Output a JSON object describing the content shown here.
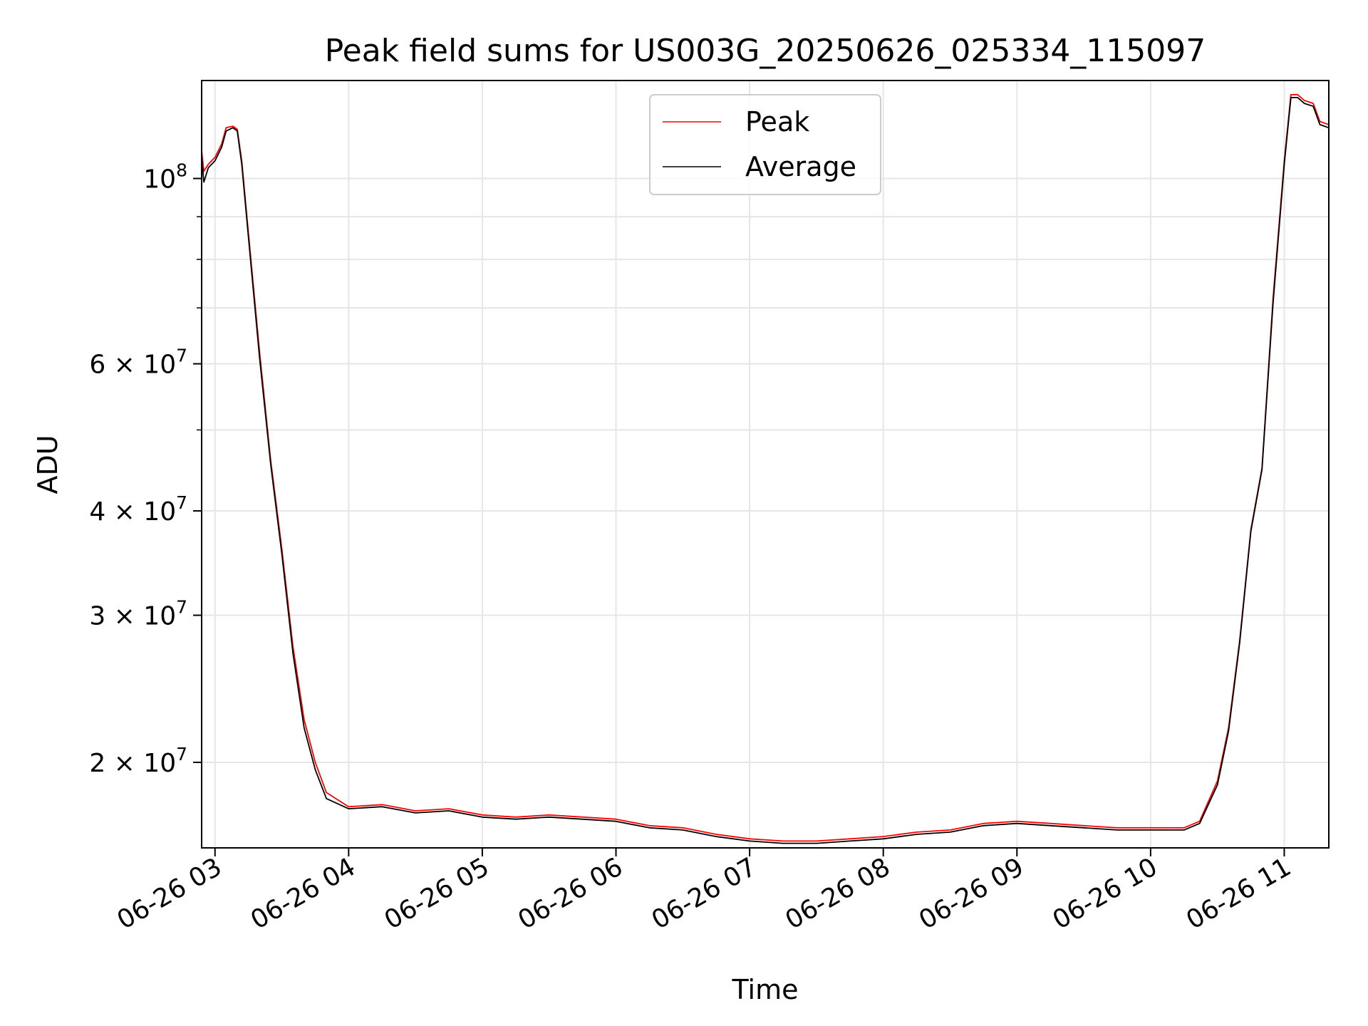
{
  "chart_data": {
    "type": "line",
    "title": "Peak field sums for US003G_20250626_025334_115097",
    "xlabel": "Time",
    "ylabel": "ADU",
    "yscale": "log",
    "ylim": [
      15800000,
      131000000
    ],
    "xlim": [
      "06-26 02:54",
      "06-26 11:20"
    ],
    "grid": true,
    "legend_position": "top-center",
    "x_ticks": [
      {
        "t": "06-26 03:00",
        "label": "06-26 03"
      },
      {
        "t": "06-26 04:00",
        "label": "06-26 04"
      },
      {
        "t": "06-26 05:00",
        "label": "06-26 05"
      },
      {
        "t": "06-26 06:00",
        "label": "06-26 06"
      },
      {
        "t": "06-26 07:00",
        "label": "06-26 07"
      },
      {
        "t": "06-26 08:00",
        "label": "06-26 08"
      },
      {
        "t": "06-26 09:00",
        "label": "06-26 09"
      },
      {
        "t": "06-26 10:00",
        "label": "06-26 10"
      },
      {
        "t": "06-26 11:00",
        "label": "06-26 11"
      }
    ],
    "y_ticks": [
      {
        "v": 100000000,
        "base": "10",
        "exp": "8"
      },
      {
        "v": 60000000,
        "base": "6 × 10",
        "exp": "7"
      },
      {
        "v": 40000000,
        "base": "4 × 10",
        "exp": "7"
      },
      {
        "v": 30000000,
        "base": "3 × 10",
        "exp": "7"
      },
      {
        "v": 20000000,
        "base": "2 × 10",
        "exp": "7"
      }
    ],
    "y_minor_ticks": [
      50000000,
      70000000,
      80000000,
      90000000
    ],
    "series": [
      {
        "name": "Peak",
        "color": "#ff0000",
        "points": [
          [
            "06-26 02:54",
            108000000
          ],
          [
            "06-26 02:55",
            102000000
          ],
          [
            "06-26 02:57",
            104000000
          ],
          [
            "06-26 03:00",
            106000000
          ],
          [
            "06-26 03:03",
            110000000
          ],
          [
            "06-26 03:05",
            115000000
          ],
          [
            "06-26 03:08",
            115500000
          ],
          [
            "06-26 03:10",
            114500000
          ],
          [
            "06-26 03:12",
            105000000
          ],
          [
            "06-26 03:15",
            86000000
          ],
          [
            "06-26 03:20",
            62000000
          ],
          [
            "06-26 03:25",
            46000000
          ],
          [
            "06-26 03:30",
            36000000
          ],
          [
            "06-26 03:35",
            27500000
          ],
          [
            "06-26 03:40",
            22500000
          ],
          [
            "06-26 03:45",
            20000000
          ],
          [
            "06-26 03:50",
            18400000
          ],
          [
            "06-26 04:00",
            17700000
          ],
          [
            "06-26 04:15",
            17800000
          ],
          [
            "06-26 04:30",
            17500000
          ],
          [
            "06-26 04:45",
            17600000
          ],
          [
            "06-26 05:00",
            17300000
          ],
          [
            "06-26 05:15",
            17200000
          ],
          [
            "06-26 05:30",
            17300000
          ],
          [
            "06-26 06:00",
            17100000
          ],
          [
            "06-26 06:15",
            16800000
          ],
          [
            "06-26 06:30",
            16700000
          ],
          [
            "06-26 06:45",
            16400000
          ],
          [
            "06-26 07:00",
            16200000
          ],
          [
            "06-26 07:15",
            16100000
          ],
          [
            "06-26 07:30",
            16100000
          ],
          [
            "06-26 07:45",
            16200000
          ],
          [
            "06-26 08:00",
            16300000
          ],
          [
            "06-26 08:15",
            16500000
          ],
          [
            "06-26 08:30",
            16600000
          ],
          [
            "06-26 08:45",
            16900000
          ],
          [
            "06-26 09:00",
            17000000
          ],
          [
            "06-26 09:15",
            16900000
          ],
          [
            "06-26 09:30",
            16800000
          ],
          [
            "06-26 09:45",
            16700000
          ],
          [
            "06-26 10:00",
            16700000
          ],
          [
            "06-26 10:15",
            16700000
          ],
          [
            "06-26 10:22",
            17000000
          ],
          [
            "06-26 10:30",
            19000000
          ],
          [
            "06-26 10:35",
            22000000
          ],
          [
            "06-26 10:40",
            28000000
          ],
          [
            "06-26 10:45",
            38000000
          ],
          [
            "06-26 10:50",
            45000000
          ],
          [
            "06-26 10:55",
            72000000
          ],
          [
            "06-26 11:00",
            105000000
          ],
          [
            "06-26 11:03",
            126000000
          ],
          [
            "06-26 11:06",
            126000000
          ],
          [
            "06-26 11:09",
            124000000
          ],
          [
            "06-26 11:13",
            123000000
          ],
          [
            "06-26 11:16",
            117000000
          ],
          [
            "06-26 11:20",
            116000000
          ]
        ]
      },
      {
        "name": "Average",
        "color": "#000000",
        "points": [
          [
            "06-26 02:54",
            106000000
          ],
          [
            "06-26 02:55",
            99000000
          ],
          [
            "06-26 02:57",
            103000000
          ],
          [
            "06-26 03:00",
            105000000
          ],
          [
            "06-26 03:03",
            109000000
          ],
          [
            "06-26 03:05",
            114000000
          ],
          [
            "06-26 03:08",
            115000000
          ],
          [
            "06-26 03:10",
            114000000
          ],
          [
            "06-26 03:12",
            104000000
          ],
          [
            "06-26 03:15",
            85000000
          ],
          [
            "06-26 03:20",
            61000000
          ],
          [
            "06-26 03:25",
            45500000
          ],
          [
            "06-26 03:30",
            35500000
          ],
          [
            "06-26 03:35",
            27000000
          ],
          [
            "06-26 03:40",
            22000000
          ],
          [
            "06-26 03:45",
            19600000
          ],
          [
            "06-26 03:50",
            18100000
          ],
          [
            "06-26 04:00",
            17600000
          ],
          [
            "06-26 04:15",
            17700000
          ],
          [
            "06-26 04:30",
            17400000
          ],
          [
            "06-26 04:45",
            17500000
          ],
          [
            "06-26 05:00",
            17200000
          ],
          [
            "06-26 05:15",
            17100000
          ],
          [
            "06-26 05:30",
            17200000
          ],
          [
            "06-26 06:00",
            17000000
          ],
          [
            "06-26 06:15",
            16700000
          ],
          [
            "06-26 06:30",
            16600000
          ],
          [
            "06-26 06:45",
            16300000
          ],
          [
            "06-26 07:00",
            16100000
          ],
          [
            "06-26 07:15",
            16000000
          ],
          [
            "06-26 07:30",
            16000000
          ],
          [
            "06-26 07:45",
            16100000
          ],
          [
            "06-26 08:00",
            16200000
          ],
          [
            "06-26 08:15",
            16400000
          ],
          [
            "06-26 08:30",
            16500000
          ],
          [
            "06-26 08:45",
            16800000
          ],
          [
            "06-26 09:00",
            16900000
          ],
          [
            "06-26 09:15",
            16800000
          ],
          [
            "06-26 09:30",
            16700000
          ],
          [
            "06-26 09:45",
            16600000
          ],
          [
            "06-26 10:00",
            16600000
          ],
          [
            "06-26 10:15",
            16600000
          ],
          [
            "06-26 10:22",
            16900000
          ],
          [
            "06-26 10:30",
            18800000
          ],
          [
            "06-26 10:35",
            21800000
          ],
          [
            "06-26 10:40",
            27800000
          ],
          [
            "06-26 10:45",
            37800000
          ],
          [
            "06-26 10:50",
            44800000
          ],
          [
            "06-26 10:55",
            71000000
          ],
          [
            "06-26 11:00",
            104000000
          ],
          [
            "06-26 11:03",
            125000000
          ],
          [
            "06-26 11:06",
            125000000
          ],
          [
            "06-26 11:09",
            123000000
          ],
          [
            "06-26 11:13",
            122000000
          ],
          [
            "06-26 11:16",
            116000000
          ],
          [
            "06-26 11:20",
            115000000
          ]
        ]
      }
    ]
  }
}
